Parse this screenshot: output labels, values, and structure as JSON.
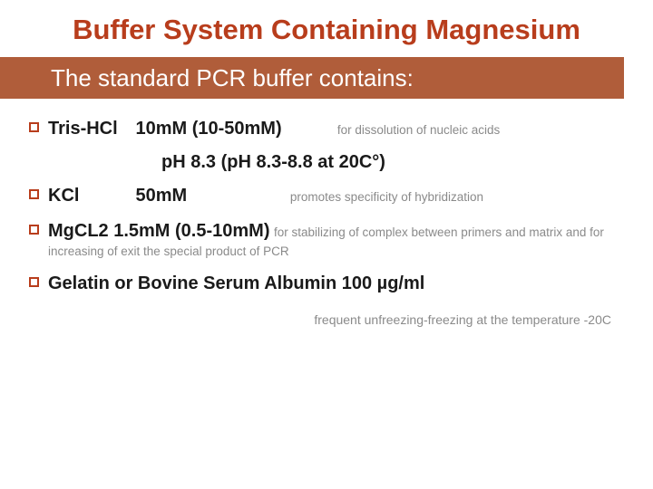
{
  "title": "Buffer System Containing Magnesium",
  "subtitle": "The standard PCR buffer contains:",
  "items": {
    "tris": {
      "label": "Tris-HCl",
      "amount": "10mM (10-50mM)",
      "note": "for dissolution of nucleic acids"
    },
    "ph": "pH 8.3 (pH 8.3-8.8 at 20C°)",
    "kcl": {
      "label": "KCl",
      "amount": "50mM",
      "note": "promotes specificity of hybridization"
    },
    "mgcl2": {
      "label_amount": "MgCL2   1.5mM (0.5-10mM)",
      "note": "for stabilizing of complex between primers and matrix and for increasing of exit the special product of PCR"
    },
    "gelatin": {
      "text": "Gelatin or Bovine Serum Albumin 100 µg/ml"
    }
  },
  "footnote": "frequent unfreezing-freezing at the temperature -20C",
  "colors": {
    "accent": "#b83d1c",
    "block": "#b05d3a",
    "note_gray": "#8a8a8a",
    "text": "#1a1a1a",
    "bg": "#ffffff"
  }
}
